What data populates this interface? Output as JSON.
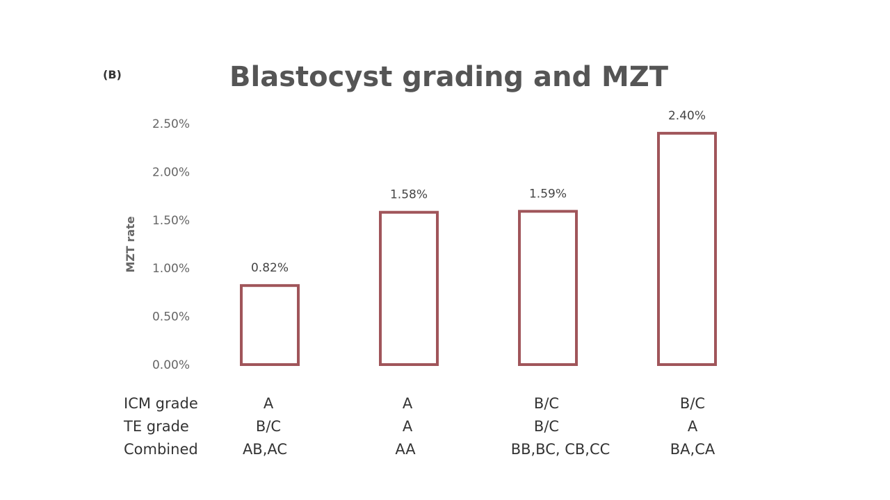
{
  "panel_label": "(B)",
  "chart_data": {
    "type": "bar",
    "title": "Blastocyst grading and MZT",
    "ylabel": "MZT rate",
    "xlabel": "",
    "ylim": [
      0,
      2.5
    ],
    "yticks": [
      "0.00%",
      "0.50%",
      "1.00%",
      "1.50%",
      "2.00%",
      "2.50%"
    ],
    "ytick_values": [
      0,
      0.5,
      1.0,
      1.5,
      2.0,
      2.5
    ],
    "categories": [
      "AB,AC",
      "AA",
      "BB,BC, CB,CC",
      "BA,CA"
    ],
    "values": [
      0.82,
      1.58,
      1.59,
      2.4
    ],
    "data_labels": [
      "0.82%",
      "1.58%",
      "1.59%",
      "2.40%"
    ],
    "grid": false,
    "legend": "none",
    "bar_style": "outline",
    "bar_color": "#a0555a"
  },
  "grade_table": {
    "row_labels": [
      "ICM grade",
      "TE grade",
      "Combined"
    ],
    "icm": [
      "A",
      "A",
      "B/C",
      "B/C"
    ],
    "te": [
      "B/C",
      "A",
      "B/C",
      "A"
    ],
    "combined": [
      "AB,AC",
      "AA",
      "BB,BC, CB,CC",
      "BA,CA"
    ]
  }
}
